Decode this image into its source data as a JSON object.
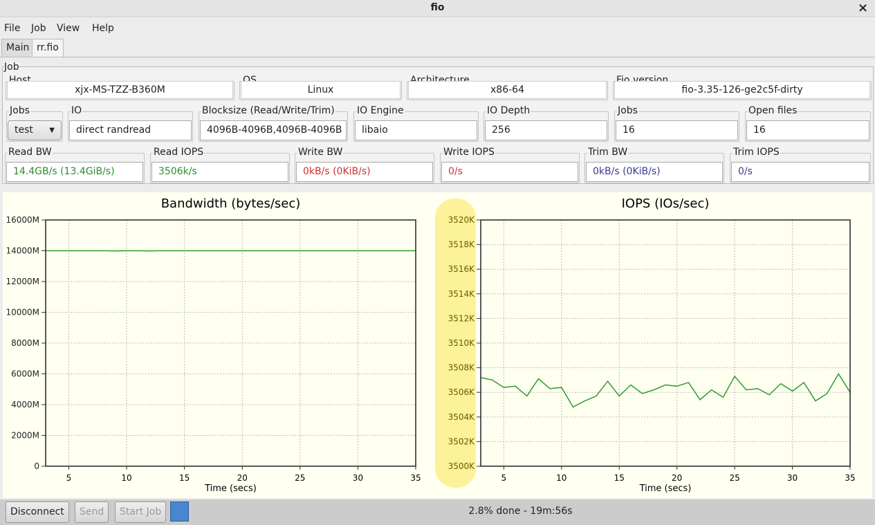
{
  "window": {
    "title": "fio",
    "close": "×"
  },
  "menu": [
    "File",
    "Job",
    "View",
    "Help"
  ],
  "tabs": [
    "Main",
    "rr.fio"
  ],
  "job": {
    "title": "Job",
    "rows": [
      [
        {
          "label": "Host",
          "value": "xjx-MS-TZZ-B360M"
        },
        {
          "label": "OS",
          "value": "Linux"
        },
        {
          "label": "Architecture",
          "value": "x86-64"
        },
        {
          "label": "Fio version",
          "value": "fio-3.35-126-ge2c5f-dirty"
        }
      ],
      [
        {
          "label": "Jobs",
          "value": "test"
        },
        {
          "label": "IO",
          "value": "direct randread"
        },
        {
          "label": "Blocksize (Read/Write/Trim)",
          "value": "4096B-4096B,4096B-4096B"
        },
        {
          "label": "IO Engine",
          "value": "libaio"
        },
        {
          "label": "IO Depth",
          "value": "256"
        },
        {
          "label": "Jobs",
          "value": "16"
        },
        {
          "label": "Open files",
          "value": "16"
        }
      ],
      [
        {
          "label": "Read BW",
          "value": "14.4GB/s (13.4GiB/s)",
          "color": "#2e8b2e"
        },
        {
          "label": "Read IOPS",
          "value": "3506k/s",
          "color": "#2e8b2e"
        },
        {
          "label": "Write BW",
          "value": "0kB/s (0KiB/s)",
          "color": "#d03030"
        },
        {
          "label": "Write IOPS",
          "value": "0/s",
          "color": "#d03030"
        },
        {
          "label": "Trim BW",
          "value": "0kB/s (0KiB/s)",
          "color": "#3a3a8c"
        },
        {
          "label": "Trim IOPS",
          "value": "0/s",
          "color": "#3a3a8c"
        }
      ]
    ]
  },
  "chart_data": [
    {
      "type": "line",
      "title": "Bandwidth (bytes/sec)",
      "x_label": "Time (secs)",
      "color": "#2e9a2e",
      "grid": true,
      "x": [
        3,
        4,
        5,
        6,
        7,
        8,
        9,
        10,
        11,
        12,
        13,
        14,
        15,
        16,
        17,
        18,
        19,
        20,
        21,
        22,
        23,
        24,
        25,
        26,
        27,
        28,
        29,
        30,
        31,
        32,
        33,
        34,
        35
      ],
      "values": [
        14000,
        14000,
        14000,
        14000,
        14000,
        14000,
        13990,
        14000,
        14000,
        13990,
        14000,
        14000,
        14000,
        14000,
        14000,
        14000,
        14000,
        14000,
        14000,
        14000,
        14000,
        14000,
        14000,
        14000,
        14000,
        14000,
        14000,
        14000,
        14000,
        14000,
        14000,
        14000,
        14000
      ],
      "xlim": [
        3,
        35
      ],
      "xticks": [
        5,
        10,
        15,
        20,
        25,
        30,
        35
      ],
      "ylim": [
        0,
        16000
      ],
      "yticks": [
        0,
        {
          "value": 2000,
          "label": "2000M"
        },
        {
          "value": 4000,
          "label": "4000M"
        },
        {
          "value": 6000,
          "label": "6000M"
        },
        {
          "value": 8000,
          "label": "8000M"
        },
        {
          "value": 10000,
          "label": "10000M"
        },
        {
          "value": 12000,
          "label": "12000M"
        },
        {
          "value": 14000,
          "label": "14000M"
        },
        {
          "value": 16000,
          "label": "16000M"
        }
      ]
    },
    {
      "type": "line",
      "title": "IOPS (IOs/sec)",
      "x_label": "Time (secs)",
      "color": "#2e9a2e",
      "grid": true,
      "x": [
        3,
        4,
        5,
        6,
        7,
        8,
        9,
        10,
        11,
        12,
        13,
        14,
        15,
        16,
        17,
        18,
        19,
        20,
        21,
        22,
        23,
        24,
        25,
        26,
        27,
        28,
        29,
        30,
        31,
        32,
        33,
        34,
        35
      ],
      "values": [
        3507.2,
        3507.0,
        3506.4,
        3506.5,
        3505.7,
        3507.1,
        3506.3,
        3506.4,
        3504.8,
        3505.3,
        3505.7,
        3506.9,
        3505.7,
        3506.6,
        3505.9,
        3506.2,
        3506.6,
        3506.5,
        3506.8,
        3505.4,
        3506.2,
        3505.6,
        3507.3,
        3506.2,
        3506.3,
        3505.8,
        3506.7,
        3506.1,
        3506.8,
        3505.3,
        3505.9,
        3507.5,
        3506.0
      ],
      "xlim": [
        3,
        35
      ],
      "xticks": [
        5,
        10,
        15,
        20,
        25,
        30,
        35
      ],
      "ylim": [
        3500,
        3520
      ],
      "yticks": [
        {
          "value": 3500,
          "label": "3500K"
        },
        {
          "value": 3502,
          "label": "3502K"
        },
        {
          "value": 3504,
          "label": "3504K"
        },
        {
          "value": 3506,
          "label": "3506K"
        },
        {
          "value": 3508,
          "label": "3508K"
        },
        {
          "value": 3510,
          "label": "3510K"
        },
        {
          "value": 3512,
          "label": "3512K"
        },
        {
          "value": 3514,
          "label": "3514K"
        },
        {
          "value": 3516,
          "label": "3516K"
        },
        {
          "value": 3518,
          "label": "3518K"
        },
        {
          "value": 3520,
          "label": "3520K"
        }
      ]
    }
  ],
  "bottom": {
    "buttons": [
      "Disconnect",
      "Send",
      "Start Job"
    ],
    "status": "2.8% done - 19m:56s"
  }
}
